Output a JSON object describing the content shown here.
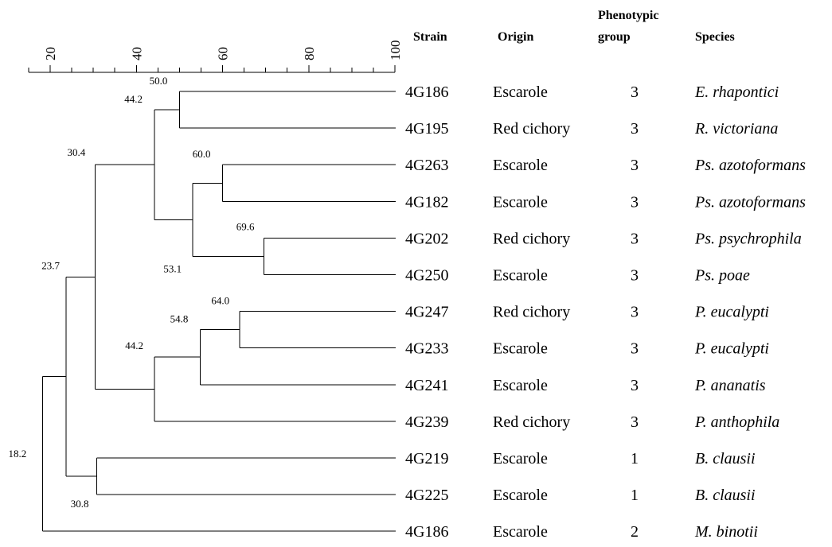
{
  "scale": {
    "ticks": [
      "20",
      "40",
      "60",
      "80",
      "100"
    ],
    "tick_values": [
      20,
      40,
      60,
      80,
      100
    ],
    "minor_step": 5,
    "range": [
      15,
      100
    ]
  },
  "headers": {
    "strain": "Strain",
    "origin": "Origin",
    "phenotypic_line1": "Phenotypic",
    "phenotypic_line2": "group",
    "species": "Species"
  },
  "rows": [
    {
      "strain": "4G186",
      "origin": "Escarole",
      "group": "3",
      "species": "E. rhapontici"
    },
    {
      "strain": "4G195",
      "origin": "Red cichory",
      "group": "3",
      "species": "R. victoriana"
    },
    {
      "strain": "4G263",
      "origin": "Escarole",
      "group": "3",
      "species": "Ps. azotoformans"
    },
    {
      "strain": "4G182",
      "origin": "Escarole",
      "group": "3",
      "species": "Ps. azotoformans"
    },
    {
      "strain": "4G202",
      "origin": "Red cichory",
      "group": "3",
      "species": "Ps. psychrophila"
    },
    {
      "strain": "4G250",
      "origin": "Escarole",
      "group": "3",
      "species": "Ps. poae"
    },
    {
      "strain": "4G247",
      "origin": "Red cichory",
      "group": "3",
      "species": "P. eucalypti"
    },
    {
      "strain": "4G233",
      "origin": "Escarole",
      "group": "3",
      "species": "P. eucalypti"
    },
    {
      "strain": "4G241",
      "origin": "Escarole",
      "group": "3",
      "species": "P. ananatis"
    },
    {
      "strain": "4G239",
      "origin": "Red cichory",
      "group": "3",
      "species": "P. anthophila"
    },
    {
      "strain": "4G219",
      "origin": "Escarole",
      "group": "1",
      "species": "B. clausii"
    },
    {
      "strain": "4G225",
      "origin": "Escarole",
      "group": "1",
      "species": "B. clausii"
    },
    {
      "strain": "4G186",
      "origin": "Escarole",
      "group": "2",
      "species": "M. binotii"
    }
  ],
  "nodes": [
    {
      "label": "50.0",
      "similarity": 50.0,
      "children": [
        "leaf:0",
        "leaf:1"
      ]
    },
    {
      "label": "69.6",
      "similarity": 69.6,
      "children": [
        "leaf:4",
        "leaf:5"
      ]
    },
    {
      "label": "60.0",
      "similarity": 60.0,
      "children": [
        "leaf:2",
        "leaf:3"
      ]
    },
    {
      "label": "53.1",
      "similarity": 53.1,
      "children": [
        "node:2",
        "node:1"
      ]
    },
    {
      "label": "44.2",
      "similarity": 44.2,
      "children": [
        "node:0",
        "node:3"
      ]
    },
    {
      "label": "64.0",
      "similarity": 64.0,
      "children": [
        "leaf:6",
        "leaf:7"
      ]
    },
    {
      "label": "54.8",
      "similarity": 54.8,
      "children": [
        "node:5",
        "leaf:8"
      ]
    },
    {
      "label": "44.2",
      "similarity": 44.2,
      "children": [
        "node:6",
        "leaf:9"
      ]
    },
    {
      "label": "30.4",
      "similarity": 30.4,
      "children": [
        "node:4",
        "node:7"
      ]
    },
    {
      "label": "30.8",
      "similarity": 30.8,
      "children": [
        "leaf:10",
        "leaf:11"
      ]
    },
    {
      "label": "23.7",
      "similarity": 23.7,
      "children": [
        "node:8",
        "node:9"
      ]
    },
    {
      "label": "18.2",
      "similarity": 18.2,
      "children": [
        "node:10",
        "leaf:12"
      ]
    }
  ]
}
